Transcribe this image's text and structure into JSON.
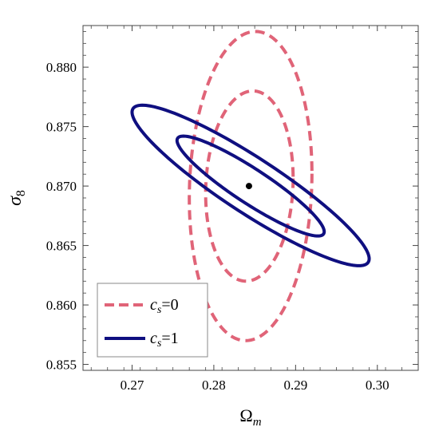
{
  "chart_data": {
    "type": "scatter",
    "title": "",
    "xlabel": "Ω",
    "xlabel_sub": "m",
    "ylabel": "σ",
    "ylabel_sub": "8",
    "xlim": [
      0.264,
      0.305
    ],
    "ylim": [
      0.8545,
      0.8835
    ],
    "xticks": [
      0.27,
      0.28,
      0.29,
      0.3
    ],
    "xtick_labels": [
      "0.27",
      "0.28",
      "0.29",
      "0.30"
    ],
    "yticks": [
      0.855,
      0.86,
      0.865,
      0.87,
      0.875,
      0.88
    ],
    "ytick_labels": [
      "0.855",
      "0.860",
      "0.865",
      "0.870",
      "0.875",
      "0.880"
    ],
    "grid": false,
    "legend_position": "bottom-left",
    "fiducial_point": {
      "x": 0.2843,
      "y": 0.87
    },
    "series": [
      {
        "name": "c_s=0",
        "legend_main": "c",
        "legend_sub": "s",
        "legend_rest": "=0",
        "color": "#e06478",
        "dash": true,
        "ellipses": [
          {
            "cx": 0.2844,
            "cy": 0.87,
            "x_min": 0.279,
            "x_max": 0.2897,
            "y_min": 0.862,
            "y_max": 0.878
          },
          {
            "cx": 0.2843,
            "cy": 0.87,
            "x_min": 0.277,
            "x_max": 0.292,
            "y_min": 0.857,
            "y_max": 0.883
          }
        ]
      },
      {
        "name": "c_s=1",
        "legend_main": "c",
        "legend_sub": "s",
        "legend_rest": "=1",
        "color": "#0f0f80",
        "dash": false,
        "ellipses": [
          {
            "cx": 0.2845,
            "cy": 0.87,
            "x_min": 0.2755,
            "x_max": 0.2935,
            "y_min": 0.8658,
            "y_max": 0.8742
          },
          {
            "cx": 0.2845,
            "cy": 0.87,
            "x_min": 0.27,
            "x_max": 0.299,
            "y_min": 0.8633,
            "y_max": 0.8768
          }
        ]
      }
    ]
  }
}
